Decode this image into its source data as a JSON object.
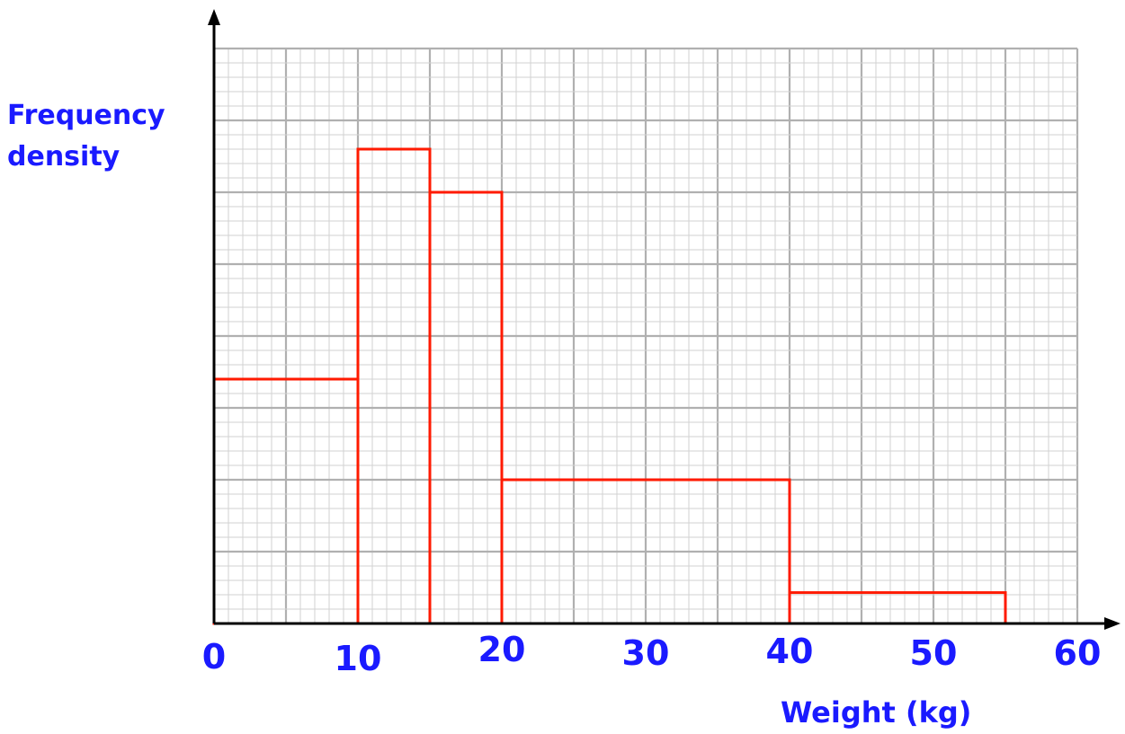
{
  "chart_data": {
    "type": "bar",
    "title": "",
    "xlabel": "Weight (kg)",
    "ylabel": "Frequency density",
    "x_ticks": [
      "0",
      "10",
      "20",
      "30",
      "40",
      "50",
      "60"
    ],
    "xlim": [
      0,
      60
    ],
    "ylim": [
      0,
      8
    ],
    "y_tick_labels_shown": false,
    "grid": true,
    "bins": [
      {
        "from": 0,
        "to": 10,
        "value": 3.4
      },
      {
        "from": 10,
        "to": 15,
        "value": 6.6
      },
      {
        "from": 15,
        "to": 20,
        "value": 6.0
      },
      {
        "from": 20,
        "to": 40,
        "value": 2.0
      },
      {
        "from": 40,
        "to": 55,
        "value": 0.43
      }
    ]
  },
  "colors": {
    "bars": "#ff1a00",
    "labels": "#1a1aff",
    "axis": "#000000",
    "grid_major": "#b0b0b0",
    "grid_minor": "#d2d2d2"
  }
}
